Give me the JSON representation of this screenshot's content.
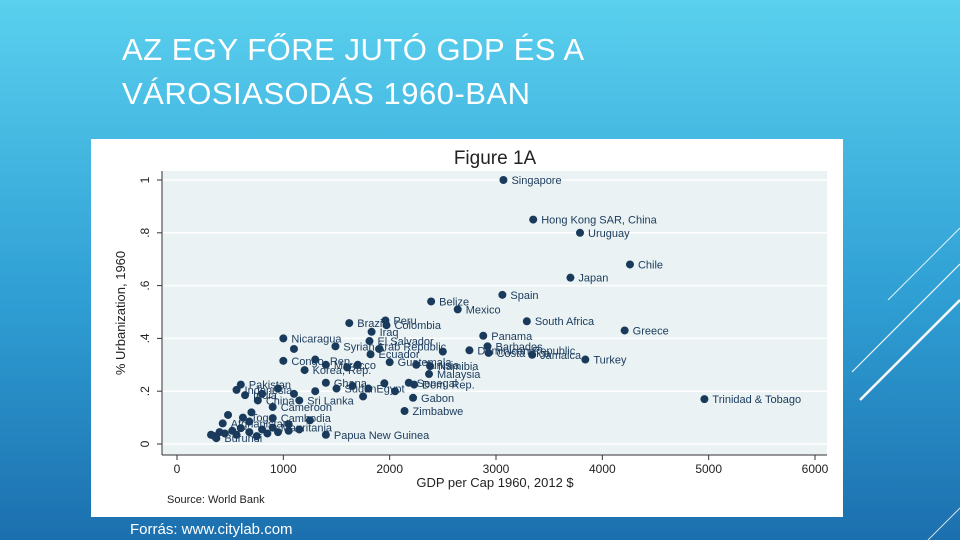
{
  "slide": {
    "title_line1": "AZ EGY FŐRE JUTÓ GDP ÉS A",
    "title_line2": "VÁROSIASODÁS 1960-BAN",
    "caption": "Forrás: www.citylab.com"
  },
  "colors": {
    "point": "#1a3a5c",
    "plot_bg": "#eaf2f3",
    "frame_bg": "#ffffff",
    "slide_top": "#5ad0ee",
    "slide_bottom": "#1c6fae"
  },
  "chart_data": {
    "type": "scatter",
    "title": "Figure 1A",
    "xlabel": "GDP per Cap 1960, 2012 $",
    "ylabel": "% Urbanization, 1960",
    "source_note": "Source: World Bank",
    "xlim": [
      0,
      6000
    ],
    "ylim": [
      0,
      1
    ],
    "xticks": [
      0,
      1000,
      2000,
      3000,
      4000,
      5000,
      6000
    ],
    "yticks": [
      0,
      0.2,
      0.4,
      0.6,
      0.8,
      1
    ],
    "ytick_labels": [
      "0",
      ".2",
      ".4",
      ".6",
      ".8",
      "1"
    ],
    "grid": true,
    "points": [
      {
        "label": "Singapore",
        "x": 3070,
        "y": 1.0
      },
      {
        "label": "Hong Kong SAR, China",
        "x": 3350,
        "y": 0.85
      },
      {
        "label": "Uruguay",
        "x": 3790,
        "y": 0.8
      },
      {
        "label": "Chile",
        "x": 4260,
        "y": 0.68
      },
      {
        "label": "Japan",
        "x": 3700,
        "y": 0.63
      },
      {
        "label": "Spain",
        "x": 3060,
        "y": 0.565
      },
      {
        "label": "Belize",
        "x": 2390,
        "y": 0.54
      },
      {
        "label": "Mexico",
        "x": 2640,
        "y": 0.51
      },
      {
        "label": "South Africa",
        "x": 3290,
        "y": 0.465
      },
      {
        "label": "Greece",
        "x": 4210,
        "y": 0.43
      },
      {
        "label": "Peru",
        "x": 1960,
        "y": 0.468
      },
      {
        "label": "Brazil",
        "x": 1620,
        "y": 0.458
      },
      {
        "label": "Colombia",
        "x": 1970,
        "y": 0.45
      },
      {
        "label": "Iraq",
        "x": 1830,
        "y": 0.425
      },
      {
        "label": "Panama",
        "x": 2880,
        "y": 0.41
      },
      {
        "label": "Nicaragua",
        "x": 1000,
        "y": 0.4
      },
      {
        "label": "El Salvador",
        "x": 1810,
        "y": 0.39
      },
      {
        "label": "Syrian Arab Republic",
        "x": 1490,
        "y": 0.37
      },
      {
        "label": "Barbados",
        "x": 2920,
        "y": 0.37
      },
      {
        "label": "Dominican Republic",
        "x": 2750,
        "y": 0.355
      },
      {
        "label": "Costa Rica",
        "x": 2930,
        "y": 0.345
      },
      {
        "label": "Jamaica",
        "x": 3340,
        "y": 0.338
      },
      {
        "label": "Ecuador",
        "x": 1820,
        "y": 0.34
      },
      {
        "label": "Turkey",
        "x": 3840,
        "y": 0.32
      },
      {
        "label": "Congo, Rep.",
        "x": 1000,
        "y": 0.315
      },
      {
        "label": "Guatemala",
        "x": 2000,
        "y": 0.31
      },
      {
        "label": "Morocco",
        "x": 1400,
        "y": 0.3
      },
      {
        "label": "Tunisia",
        "x": 2250,
        "y": 0.3
      },
      {
        "label": "Namibia",
        "x": 2380,
        "y": 0.295
      },
      {
        "label": "Korea, Rep.",
        "x": 1200,
        "y": 0.28
      },
      {
        "label": "Malaysia",
        "x": 2370,
        "y": 0.265
      },
      {
        "label": "Pakistan",
        "x": 600,
        "y": 0.225
      },
      {
        "label": "Ghana",
        "x": 1400,
        "y": 0.232
      },
      {
        "label": "Senegal",
        "x": 2180,
        "y": 0.232
      },
      {
        "label": "Dem. Rep.",
        "x": 2230,
        "y": 0.225
      },
      {
        "label": "Indonesia",
        "x": 560,
        "y": 0.205
      },
      {
        "label": "Sudan",
        "x": 1500,
        "y": 0.21
      },
      {
        "label": "Egypt",
        "x": 1800,
        "y": 0.21
      },
      {
        "label": "Gabon",
        "x": 2220,
        "y": 0.175
      },
      {
        "label": "India",
        "x": 640,
        "y": 0.185
      },
      {
        "label": "China",
        "x": 760,
        "y": 0.165
      },
      {
        "label": "Sri Lanka",
        "x": 1150,
        "y": 0.165
      },
      {
        "label": "Cameroon",
        "x": 900,
        "y": 0.14
      },
      {
        "label": "Zimbabwe",
        "x": 2140,
        "y": 0.125
      },
      {
        "label": "Trinidad & Tobago",
        "x": 4960,
        "y": 0.17
      },
      {
        "label": "Togo",
        "x": 620,
        "y": 0.1
      },
      {
        "label": "Cambodia",
        "x": 900,
        "y": 0.098
      },
      {
        "label": "Afghanistan",
        "x": 430,
        "y": 0.078
      },
      {
        "label": "Mauritania",
        "x": 900,
        "y": 0.062
      },
      {
        "label": "Papua New Guinea",
        "x": 1400,
        "y": 0.035
      },
      {
        "label": "Burundi",
        "x": 370,
        "y": 0.022
      }
    ],
    "unlabeled_points": [
      {
        "x": 320,
        "y": 0.035
      },
      {
        "x": 350,
        "y": 0.03
      },
      {
        "x": 400,
        "y": 0.045
      },
      {
        "x": 450,
        "y": 0.04
      },
      {
        "x": 520,
        "y": 0.05
      },
      {
        "x": 560,
        "y": 0.035
      },
      {
        "x": 600,
        "y": 0.06
      },
      {
        "x": 680,
        "y": 0.045
      },
      {
        "x": 750,
        "y": 0.03
      },
      {
        "x": 800,
        "y": 0.055
      },
      {
        "x": 850,
        "y": 0.04
      },
      {
        "x": 950,
        "y": 0.045
      },
      {
        "x": 1050,
        "y": 0.05
      },
      {
        "x": 1150,
        "y": 0.055
      },
      {
        "x": 480,
        "y": 0.11
      },
      {
        "x": 700,
        "y": 0.12
      },
      {
        "x": 800,
        "y": 0.19
      },
      {
        "x": 950,
        "y": 0.21
      },
      {
        "x": 1100,
        "y": 0.19
      },
      {
        "x": 1300,
        "y": 0.2
      },
      {
        "x": 1650,
        "y": 0.22
      },
      {
        "x": 1750,
        "y": 0.18
      },
      {
        "x": 1950,
        "y": 0.23
      },
      {
        "x": 2050,
        "y": 0.2
      },
      {
        "x": 1700,
        "y": 0.3
      },
      {
        "x": 1600,
        "y": 0.29
      },
      {
        "x": 1900,
        "y": 0.36
      },
      {
        "x": 2500,
        "y": 0.35
      },
      {
        "x": 1300,
        "y": 0.32
      },
      {
        "x": 1100,
        "y": 0.36
      },
      {
        "x": 680,
        "y": 0.085
      },
      {
        "x": 1250,
        "y": 0.09
      },
      {
        "x": 1050,
        "y": 0.075
      }
    ]
  }
}
